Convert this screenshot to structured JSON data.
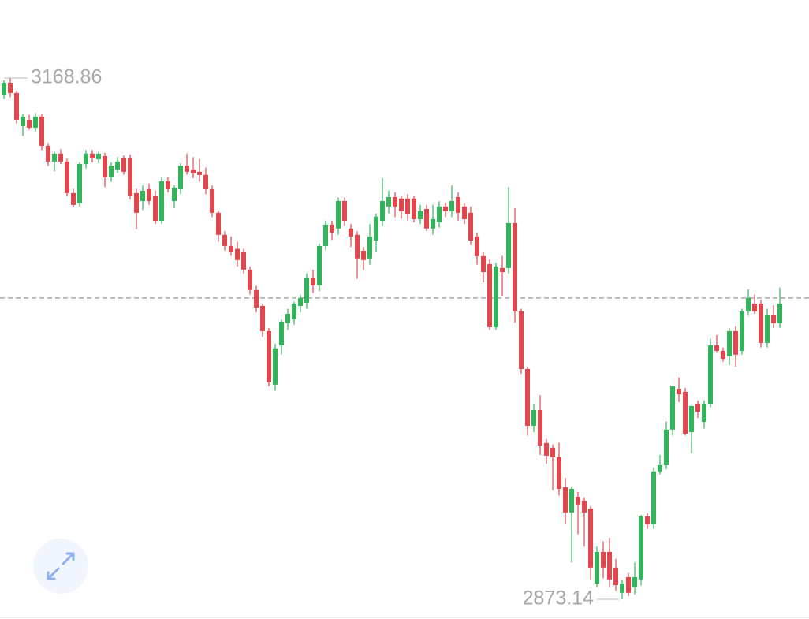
{
  "chart_data": {
    "type": "candlestick",
    "up_color": "#33b35a",
    "down_color": "#e0474c",
    "max_annotation": 3168.86,
    "min_annotation": 2873.14,
    "reference_value": 3044.1,
    "open": [
      3159.5,
      3166.2,
      3160.4,
      3141.6,
      3145.2,
      3140.7,
      3147.0,
      3130.4,
      3121.5,
      3126.0,
      3121.5,
      3103.6,
      3097.8,
      3120.1,
      3126.0,
      3122.8,
      3124.6,
      3112.5,
      3117.0,
      3123.7,
      3123.7,
      3103.6,
      3099.1,
      3105.8,
      3102.2,
      3087.9,
      3110.3,
      3099.1,
      3105.8,
      3119.2,
      3117.0,
      3115.7,
      3113.9,
      3105.8,
      3092.4,
      3079.9,
      3073.6,
      3072.0,
      3070.0,
      3060.2,
      3048.6,
      3039.6,
      3025.3,
      2994.9,
      3017.2,
      3029.8,
      3032.0,
      3039.6,
      3041.4,
      3055.7,
      3051.2,
      3073.6,
      3085.7,
      3083.5,
      3099.1,
      3083.5,
      3079.9,
      3070.9,
      3066.5,
      3076.7,
      3087.9,
      3096.0,
      3101.3,
      3100.5,
      3100.5,
      3100.5,
      3088.8,
      3094.6,
      3083.5,
      3087.0,
      3096.0,
      3093.3,
      3101.3,
      3096.0,
      3092.4,
      3079.0,
      3067.8,
      3063.3,
      3027.5,
      3061.1,
      3061.1,
      3086.6,
      3036.5,
      3003.8,
      2971.6,
      2980.5,
      2961.8,
      2959.1,
      2953.7,
      2936.7,
      2922.4,
      2931.3,
      2929.1,
      2924.6,
      2882.1,
      2900.0,
      2900.0,
      2891.1,
      2876.8,
      2885.7,
      2879.9,
      2884.4,
      2920.2,
      2915.7,
      2945.7,
      2949.2,
      2969.4,
      2992.6,
      2990.8,
      2968.0,
      2984.1,
      2973.8,
      2984.1,
      3017.2,
      3014.1,
      3011.0,
      3025.3,
      3014.1,
      3036.5,
      3040.9,
      3040.9,
      3018.6,
      3034.2,
      3029.8
    ],
    "high": [
      3167.5,
      3168.86,
      3161.5,
      3148.5,
      3148.0,
      3149.0,
      3148.5,
      3132.0,
      3127.0,
      3128.5,
      3123.0,
      3106.0,
      3121.0,
      3128.0,
      3128.0,
      3127.0,
      3126.5,
      3121.0,
      3124.0,
      3125.0,
      3125.5,
      3106.0,
      3108.0,
      3109.0,
      3105.0,
      3113.0,
      3112.5,
      3108.0,
      3120.5,
      3126.0,
      3124.0,
      3123.0,
      3118.0,
      3108.0,
      3093.5,
      3082.0,
      3079.0,
      3076.0,
      3072.0,
      3062.0,
      3051.0,
      3041.0,
      3027.0,
      3018.0,
      3032.0,
      3038.0,
      3042.0,
      3046.0,
      3058.0,
      3060.0,
      3075.0,
      3088.0,
      3088.0,
      3101.0,
      3101.0,
      3086.0,
      3082.0,
      3073.0,
      3086.0,
      3092.0,
      3112.0,
      3105.0,
      3104.0,
      3102.0,
      3103.0,
      3102.0,
      3097.0,
      3097.0,
      3097.0,
      3099.0,
      3098.0,
      3108.0,
      3104.0,
      3098.0,
      3096.0,
      3081.0,
      3070.0,
      3066.0,
      3064.0,
      3068.0,
      3107.0,
      3095.0,
      3038.0,
      3005.0,
      2984.0,
      2989.0,
      2964.0,
      2961.0,
      2962.0,
      2942.0,
      2937.0,
      2934.0,
      2931.0,
      2926.0,
      2903.0,
      2906.0,
      2908.0,
      2896.0,
      2884.0,
      2888.0,
      2894.0,
      2921.0,
      2922.0,
      2948.0,
      2955.0,
      2974.0,
      2994.0,
      2999.0,
      2993.0,
      2982.0,
      2986.0,
      2986.0,
      3021.0,
      3023.0,
      3016.0,
      3027.0,
      3028.0,
      3038.0,
      3049.0,
      3046.0,
      3043.0,
      3038.0,
      3040.0,
      3050.0
    ],
    "low": [
      3157.0,
      3158.0,
      3143.0,
      3136.0,
      3139.5,
      3138.5,
      3128.0,
      3119.0,
      3116.0,
      3120.0,
      3102.0,
      3095.5,
      3096.0,
      3117.5,
      3121.0,
      3120.5,
      3107.0,
      3110.0,
      3115.0,
      3114.0,
      3100.0,
      3083.0,
      3094.0,
      3097.0,
      3086.0,
      3086.0,
      3104.0,
      3095.0,
      3103.0,
      3114.0,
      3112.0,
      3110.0,
      3103.0,
      3090.0,
      3076.0,
      3071.0,
      3068.0,
      3062.0,
      3058.0,
      3046.0,
      3036.0,
      3022.0,
      2994.0,
      2991.5,
      3012.0,
      3026.0,
      3029.0,
      3036.0,
      3038.0,
      3047.0,
      3048.0,
      3071.0,
      3077.0,
      3080.0,
      3085.0,
      3073.0,
      3055.0,
      3060.0,
      3063.0,
      3070.0,
      3085.0,
      3092.0,
      3090.0,
      3089.0,
      3088.0,
      3087.0,
      3086.0,
      3082.0,
      3080.0,
      3084.0,
      3090.0,
      3090.0,
      3088.0,
      3086.0,
      3074.0,
      3063.0,
      3053.0,
      3026.0,
      3026.0,
      3045.0,
      3058.0,
      3030.0,
      3001.0,
      2966.0,
      2968.0,
      2955.0,
      2950.0,
      2935.0,
      2932.0,
      2916.0,
      2894.0,
      2910.0,
      2903.0,
      2884.0,
      2880.0,
      2885.0,
      2880.0,
      2878.0,
      2873.14,
      2875.0,
      2876.0,
      2881.0,
      2913.0,
      2913.0,
      2944.0,
      2947.0,
      2966.0,
      2985.0,
      2966.0,
      2956.0,
      2976.0,
      2970.0,
      2982.0,
      3013.0,
      3008.0,
      3006.0,
      3005.0,
      3012.0,
      3034.0,
      3035.0,
      3016.0,
      3016.0,
      3027.0,
      3027.0
    ],
    "close": [
      3166.2,
      3160.4,
      3145.2,
      3147.0,
      3140.7,
      3147.0,
      3130.4,
      3121.5,
      3126.0,
      3121.5,
      3103.6,
      3096.9,
      3120.1,
      3126.0,
      3123.7,
      3126.0,
      3112.5,
      3119.2,
      3121.5,
      3115.7,
      3102.2,
      3092.4,
      3104.9,
      3099.1,
      3087.9,
      3110.3,
      3105.8,
      3106.7,
      3119.2,
      3115.7,
      3114.8,
      3113.9,
      3105.8,
      3092.4,
      3079.9,
      3073.6,
      3070.0,
      3065.6,
      3060.2,
      3048.6,
      3038.7,
      3025.3,
      2996.2,
      3015.5,
      3030.7,
      3035.1,
      3040.9,
      3044.1,
      3055.7,
      3051.2,
      3073.6,
      3085.7,
      3081.2,
      3099.1,
      3087.9,
      3079.0,
      3066.5,
      3065.6,
      3079.0,
      3090.2,
      3099.1,
      3101.3,
      3096.0,
      3093.3,
      3091.5,
      3088.8,
      3093.3,
      3083.5,
      3088.8,
      3096.0,
      3093.3,
      3099.1,
      3092.4,
      3088.8,
      3076.7,
      3067.8,
      3058.8,
      3027.5,
      3062.0,
      3058.8,
      3086.6,
      3036.5,
      3003.8,
      2971.6,
      2980.5,
      2960.4,
      2954.6,
      2953.7,
      2935.8,
      2922.4,
      2935.8,
      2926.9,
      2922.4,
      2891.1,
      2900.0,
      2891.1,
      2884.4,
      2881.2,
      2882.1,
      2876.8,
      2885.7,
      2920.2,
      2915.7,
      2945.7,
      2949.2,
      2969.4,
      2994.0,
      2989.4,
      2967.1,
      2982.8,
      2979.6,
      2984.1,
      3017.2,
      3014.1,
      3009.6,
      3025.3,
      3011.9,
      3036.5,
      3044.1,
      3036.5,
      3018.6,
      3034.2,
      3029.8,
      3040.9
    ]
  }
}
